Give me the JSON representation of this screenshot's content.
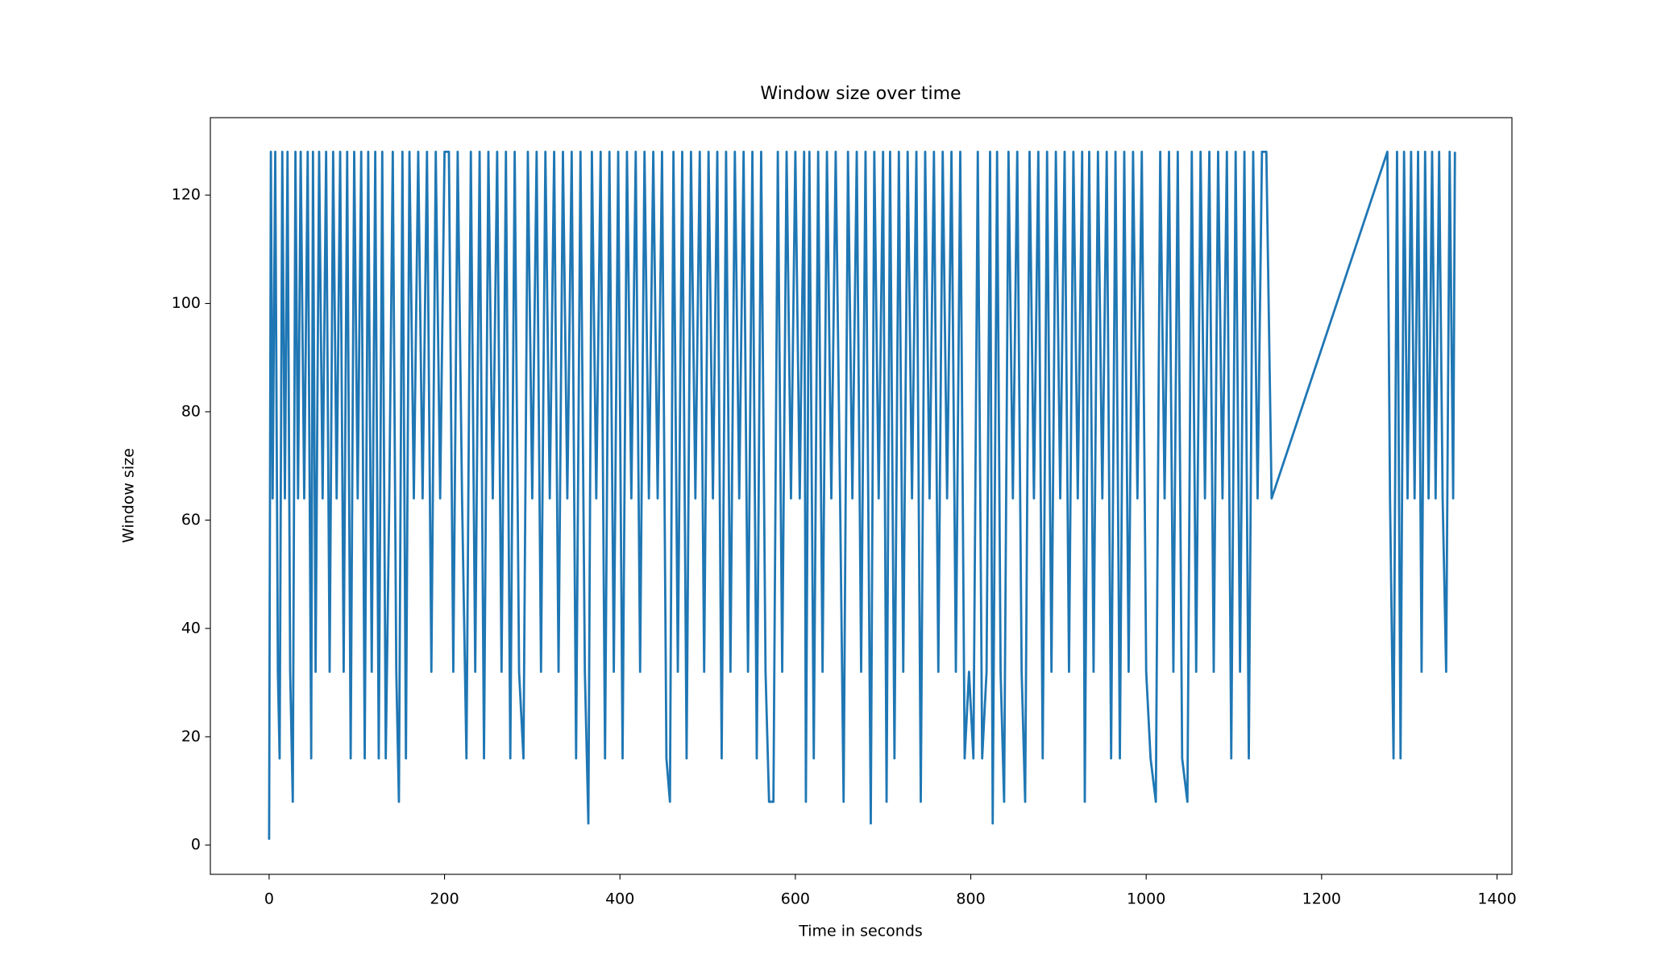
{
  "chart_data": {
    "type": "line",
    "title": "Window size over time",
    "xlabel": "Time in seconds",
    "ylabel": "Window size",
    "color": "#1f77b4",
    "x": [
      0,
      2,
      4,
      7,
      10,
      12,
      15,
      18,
      21,
      24,
      27,
      30,
      33,
      36,
      40,
      44,
      48,
      50,
      53,
      57,
      61,
      65,
      69,
      73,
      77,
      81,
      85,
      89,
      93,
      97,
      101,
      105,
      109,
      113,
      117,
      121,
      125,
      129,
      133,
      137,
      141,
      145,
      148,
      152,
      156,
      160,
      165,
      170,
      175,
      180,
      185,
      190,
      195,
      200,
      205,
      210,
      215,
      220,
      225,
      230,
      235,
      240,
      245,
      250,
      255,
      260,
      265,
      270,
      275,
      280,
      285,
      290,
      295,
      300,
      305,
      310,
      315,
      320,
      325,
      330,
      335,
      340,
      345,
      350,
      355,
      360,
      364,
      368,
      373,
      378,
      383,
      388,
      393,
      398,
      403,
      408,
      413,
      418,
      423,
      428,
      433,
      438,
      443,
      448,
      453,
      457,
      461,
      466,
      471,
      476,
      481,
      486,
      491,
      496,
      501,
      506,
      511,
      516,
      521,
      526,
      531,
      536,
      541,
      546,
      551,
      556,
      561,
      566,
      570,
      575,
      580,
      585,
      590,
      595,
      600,
      605,
      610,
      612,
      616,
      621,
      626,
      631,
      636,
      641,
      646,
      651,
      655,
      660,
      665,
      670,
      675,
      680,
      686,
      690,
      695,
      700,
      704,
      708,
      713,
      718,
      723,
      728,
      733,
      738,
      743,
      748,
      753,
      758,
      763,
      768,
      773,
      778,
      783,
      788,
      793,
      798,
      803,
      808,
      813,
      818,
      822,
      825,
      830,
      834,
      838,
      843,
      848,
      853,
      858,
      862,
      867,
      872,
      877,
      882,
      887,
      892,
      897,
      902,
      907,
      912,
      917,
      922,
      927,
      930,
      935,
      940,
      945,
      950,
      955,
      960,
      965,
      970,
      975,
      980,
      985,
      990,
      995,
      1000,
      1005,
      1011,
      1016,
      1021,
      1026,
      1031,
      1036,
      1041,
      1047,
      1052,
      1057,
      1062,
      1067,
      1072,
      1077,
      1082,
      1087,
      1092,
      1097,
      1102,
      1107,
      1112,
      1117,
      1122,
      1127,
      1132,
      1137,
      1143,
      1275,
      1278,
      1282,
      1286,
      1290,
      1294,
      1298,
      1302,
      1306,
      1310,
      1314,
      1318,
      1322,
      1326,
      1330,
      1334,
      1338,
      1342,
      1346,
      1350,
      1352
    ],
    "values": [
      1,
      128,
      64,
      128,
      32,
      16,
      128,
      64,
      128,
      32,
      8,
      128,
      64,
      128,
      64,
      128,
      16,
      128,
      32,
      128,
      64,
      128,
      32,
      128,
      64,
      128,
      32,
      128,
      16,
      128,
      64,
      128,
      16,
      128,
      32,
      128,
      16,
      128,
      16,
      64,
      128,
      32,
      8,
      128,
      16,
      128,
      64,
      128,
      64,
      128,
      32,
      128,
      64,
      128,
      128,
      32,
      128,
      64,
      16,
      128,
      32,
      128,
      16,
      128,
      64,
      128,
      32,
      128,
      16,
      128,
      32,
      16,
      128,
      64,
      128,
      32,
      128,
      64,
      128,
      32,
      128,
      64,
      128,
      16,
      128,
      32,
      4,
      128,
      64,
      128,
      16,
      128,
      32,
      128,
      16,
      128,
      64,
      128,
      32,
      128,
      64,
      128,
      64,
      128,
      16,
      8,
      128,
      32,
      128,
      16,
      128,
      64,
      128,
      32,
      128,
      64,
      128,
      16,
      128,
      32,
      128,
      64,
      128,
      32,
      128,
      16,
      128,
      32,
      8,
      8,
      128,
      32,
      128,
      64,
      128,
      64,
      128,
      8,
      128,
      16,
      128,
      32,
      128,
      64,
      128,
      64,
      8,
      128,
      64,
      128,
      32,
      128,
      4,
      128,
      64,
      128,
      8,
      128,
      16,
      128,
      32,
      128,
      64,
      128,
      8,
      128,
      64,
      128,
      32,
      128,
      64,
      128,
      32,
      128,
      16,
      32,
      16,
      128,
      16,
      32,
      128,
      4,
      128,
      32,
      8,
      128,
      64,
      128,
      32,
      8,
      128,
      64,
      128,
      16,
      128,
      32,
      128,
      64,
      128,
      32,
      128,
      64,
      128,
      8,
      128,
      32,
      128,
      64,
      128,
      16,
      128,
      16,
      128,
      32,
      128,
      64,
      128,
      32,
      16,
      8,
      128,
      64,
      128,
      32,
      128,
      16,
      8,
      128,
      32,
      128,
      64,
      128,
      32,
      128,
      64,
      128,
      16,
      128,
      32,
      128,
      16,
      128,
      64,
      128,
      128,
      64,
      128,
      64,
      16,
      128,
      16,
      128,
      64,
      128,
      64,
      128,
      32,
      128,
      64,
      128,
      64,
      128,
      64,
      32,
      128,
      64,
      128
    ],
    "xlim": [
      -67,
      1417
    ],
    "ylim": [
      -5.4,
      134.3
    ],
    "xticks": [
      0,
      200,
      400,
      600,
      800,
      1000,
      1200,
      1400
    ],
    "yticks": [
      0,
      20,
      40,
      60,
      80,
      100,
      120
    ]
  }
}
